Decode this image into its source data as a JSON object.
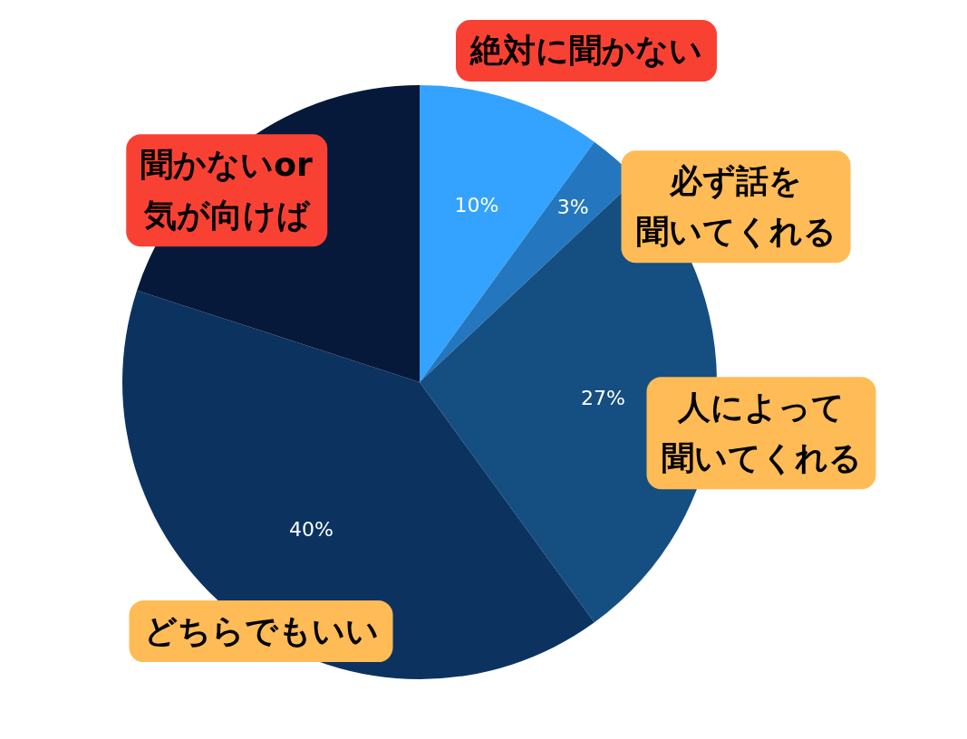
{
  "chart_data": {
    "type": "pie",
    "categories": [
      "絶対に聞かない",
      "必ず話を聞いてくれる",
      "人によって聞いてくれる",
      "どちらでもいい",
      "聞かないor気が向けば"
    ],
    "values": [
      10,
      3,
      27,
      40,
      20
    ],
    "colors": [
      "#33a3ff",
      "#2477be",
      "#154e80",
      "#0c3360",
      "#06193a"
    ],
    "value_labels": [
      "10%",
      "3%",
      "27%",
      "40%",
      null
    ],
    "legend": false
  }
}
